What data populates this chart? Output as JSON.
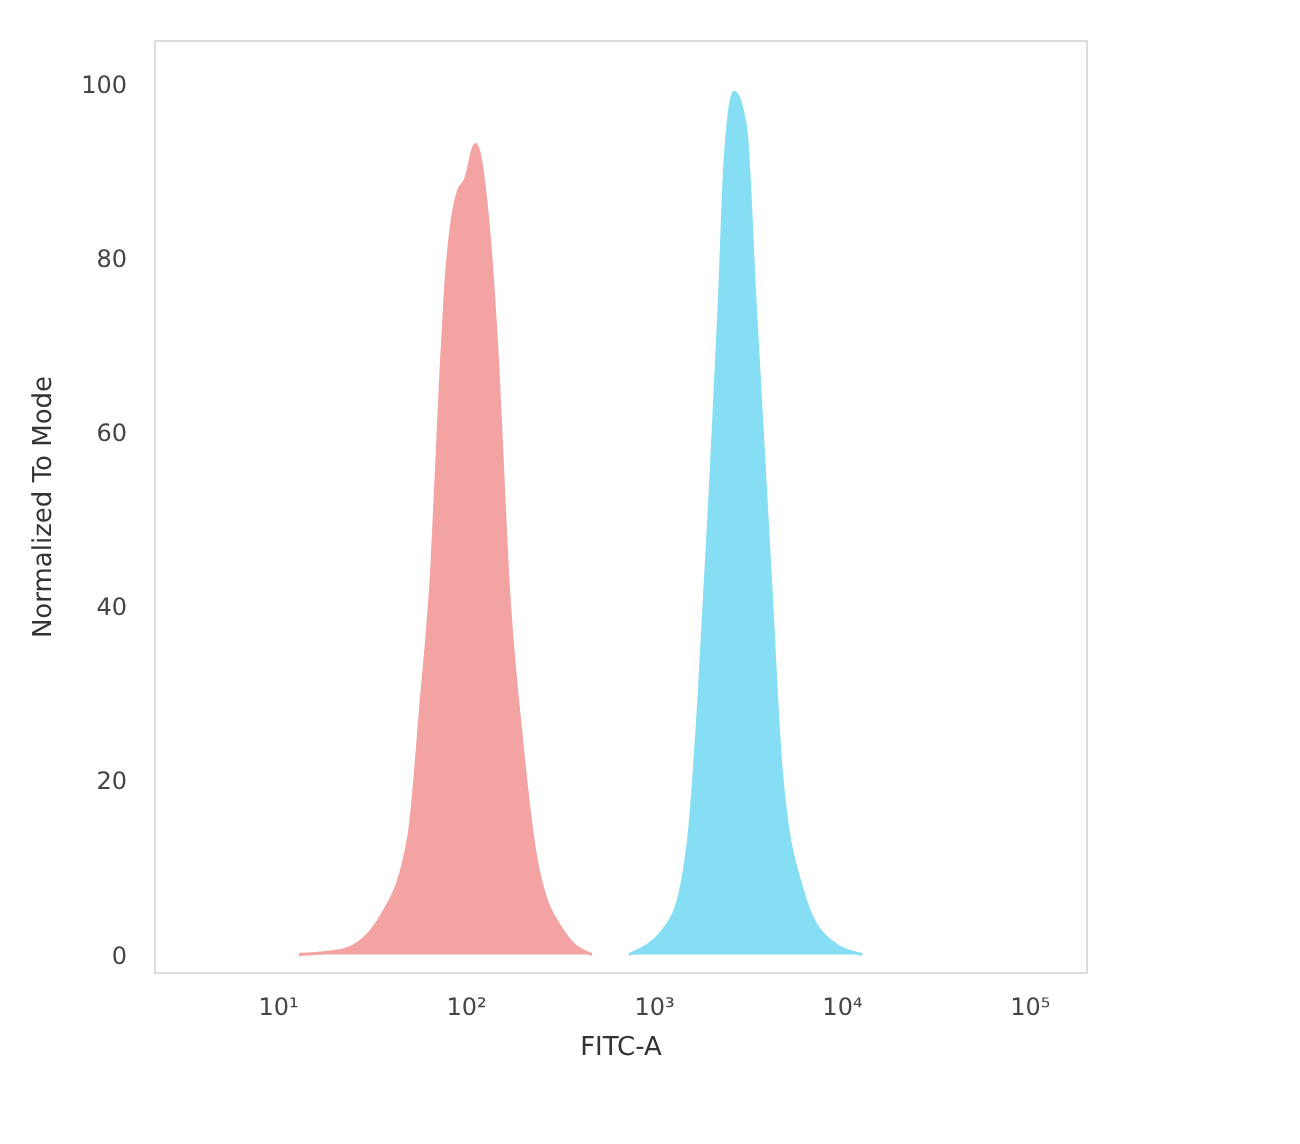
{
  "chart_data": {
    "type": "area",
    "xlabel": "FITC-A",
    "ylabel": "Normalized To Mode",
    "log": "x",
    "xlim": [
      2.2,
      200000
    ],
    "ylim": [
      -2,
      105
    ],
    "xticks": [
      {
        "value": 10,
        "label": "10¹"
      },
      {
        "value": 100,
        "label": "10²"
      },
      {
        "value": 1000,
        "label": "10³"
      },
      {
        "value": 10000,
        "label": "10⁴"
      },
      {
        "value": 100000,
        "label": "10⁵"
      }
    ],
    "yticks": [
      0,
      20,
      40,
      60,
      80,
      100
    ],
    "series": [
      {
        "color": "#f4a3a3",
        "x": [
          13,
          22,
          36,
          50,
          58,
          66,
          74,
          78,
          91,
          100,
          113,
          129,
          149,
          167,
          198,
          242,
          340,
          470
        ],
        "values": [
          0,
          0.5,
          4.6,
          13.7,
          29,
          44,
          67,
          76,
          87.5,
          89,
          93,
          86,
          67,
          44,
          25,
          10,
          2.3,
          0
        ]
      },
      {
        "color": "#86def5",
        "x": [
          740,
          1230,
          1550,
          1740,
          1990,
          2240,
          2400,
          2690,
          3090,
          3470,
          4170,
          4790,
          6170,
          8710,
          12900
        ],
        "values": [
          0,
          4,
          14,
          29,
          52,
          75,
          91,
          99,
          95,
          75,
          44,
          21,
          7.5,
          1.6,
          0
        ]
      }
    ]
  }
}
